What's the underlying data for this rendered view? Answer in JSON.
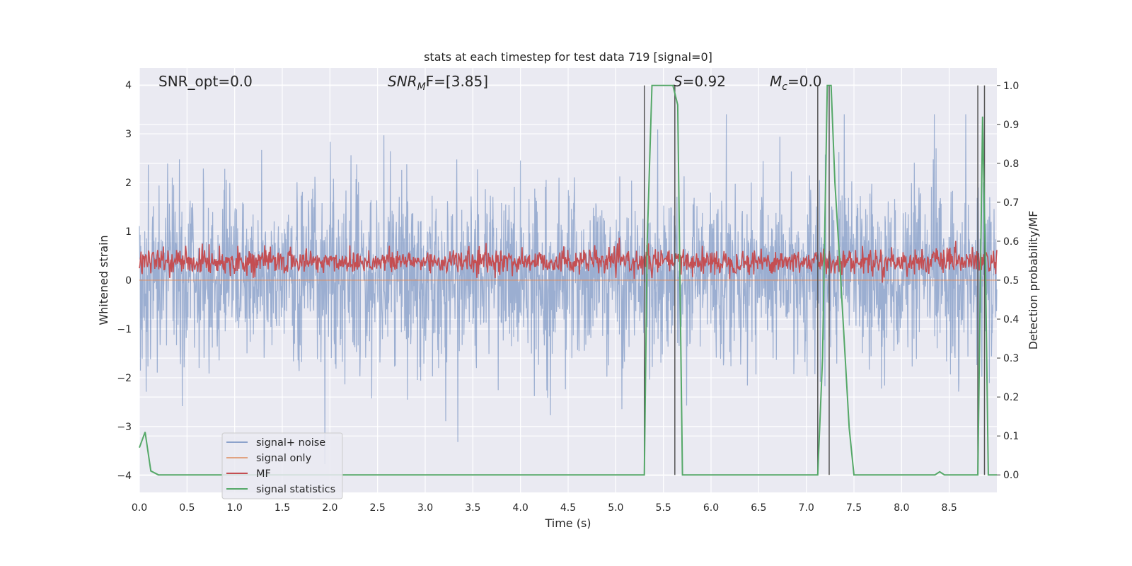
{
  "chart_data": {
    "type": "line",
    "title": "stats at each timestep for test data 719 [signal=0]",
    "xlabel": "Time (s)",
    "ylabel_left": "Whitened strain",
    "ylabel_right": "Detection probability/MF",
    "xlim": [
      0.0,
      9.0
    ],
    "ylim_left": [
      -4.0,
      4.0
    ],
    "ylim_right": [
      0.0,
      1.0
    ],
    "x_ticks": [
      "0.0",
      "0.5",
      "1.0",
      "1.5",
      "2.0",
      "2.5",
      "3.0",
      "3.5",
      "4.0",
      "4.5",
      "5.0",
      "5.5",
      "6.0",
      "6.5",
      "7.0",
      "7.5",
      "8.0",
      "8.5"
    ],
    "y_ticks_left": [
      "−4",
      "−3",
      "−2",
      "−1",
      "0",
      "1",
      "2",
      "3",
      "4"
    ],
    "y_ticks_right": [
      "0.0",
      "0.1",
      "0.2",
      "0.3",
      "0.4",
      "0.5",
      "0.6",
      "0.7",
      "0.8",
      "0.9",
      "1.0"
    ],
    "grid": true,
    "legend_placement": "lower-left",
    "annotations": {
      "snr_opt": "SNR_opt=0.0",
      "snr_mf": "SNR",
      "snr_mf_sub": "M",
      "snr_mf_rest": "F=[3.85]",
      "s_value": "S",
      "s_rest": "=0.92",
      "mc_value": "M",
      "mc_sub": "c",
      "mc_rest": "=0.0"
    },
    "series": [
      {
        "name": "signal+ noise",
        "color": "#4c72b0",
        "axis": "left",
        "description_range": [
          -3.8,
          3.4
        ],
        "typical_range": [
          -1.6,
          1.9
        ]
      },
      {
        "name": "signal only",
        "color": "#dd8452",
        "axis": "left",
        "values_constant": 0.0
      },
      {
        "name": "MF",
        "color": "#c44e52",
        "axis": "right",
        "typical_range": [
          0.49,
          0.61
        ]
      },
      {
        "name": "signal statistics",
        "color": "#55a868",
        "axis": "right",
        "x": [
          0.0,
          0.06,
          0.12,
          0.2,
          0.3,
          5.3,
          5.33,
          5.38,
          5.6,
          5.65,
          5.7,
          7.12,
          7.17,
          7.22,
          7.26,
          7.3,
          7.35,
          7.45,
          7.5,
          8.35,
          8.4,
          8.45,
          8.8,
          8.85,
          8.88,
          8.91,
          8.93,
          9.0
        ],
        "y": [
          0.07,
          0.11,
          0.01,
          0.0,
          0.0,
          0.0,
          0.6,
          1.0,
          1.0,
          0.95,
          0.0,
          0.0,
          0.3,
          1.0,
          1.0,
          0.75,
          0.55,
          0.12,
          0.0,
          0.0,
          0.008,
          0.0,
          0.0,
          0.92,
          0.55,
          0.0,
          0.0,
          0.0
        ]
      }
    ],
    "trigger_lines_x": [
      5.3,
      5.62,
      7.12,
      7.24,
      8.8,
      8.87
    ],
    "trigger_line_color": "#555555"
  }
}
